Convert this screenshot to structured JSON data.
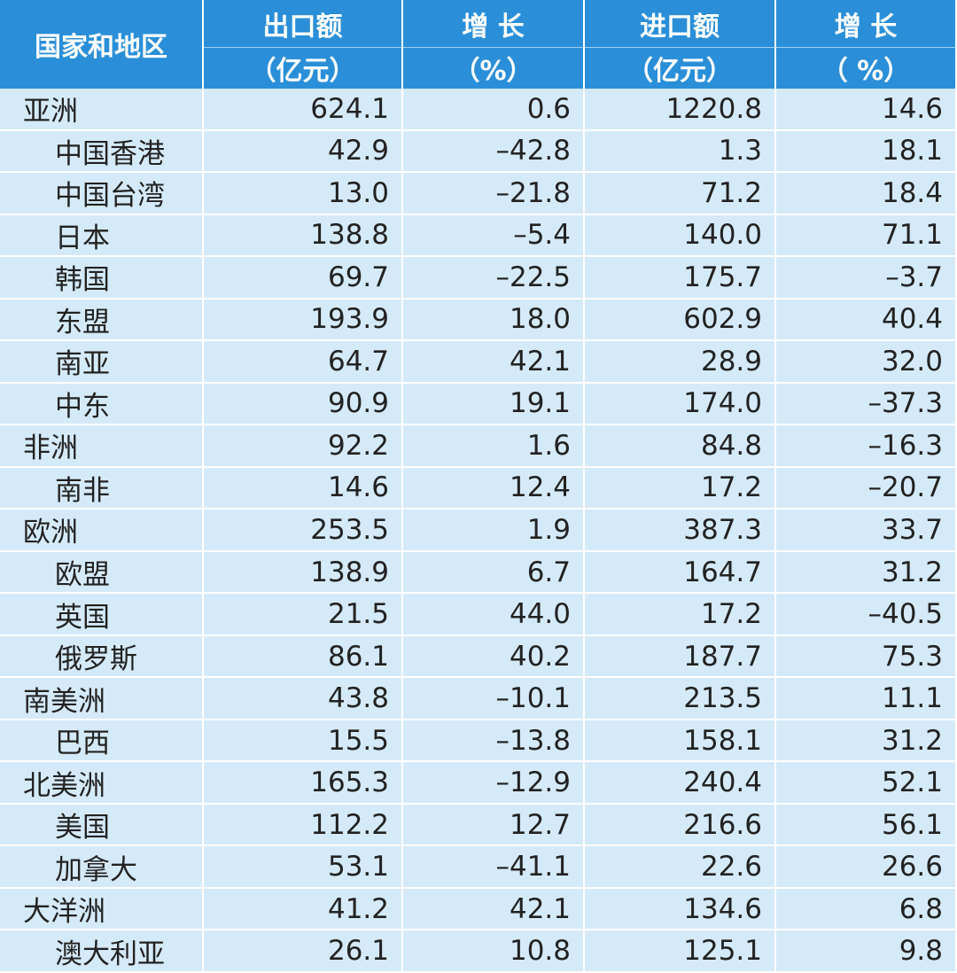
{
  "table": {
    "header": {
      "first": "国家和地区",
      "columns": [
        {
          "main": "出口额",
          "unit": "（亿元）"
        },
        {
          "main": "增 长",
          "unit": "（%）"
        },
        {
          "main": "进口额",
          "unit": "（亿元）"
        },
        {
          "main": "增 长",
          "unit": "（ %）"
        }
      ]
    },
    "regions": [
      {
        "row": [
          "亚洲",
          "624.1",
          "0.6",
          "1220.8",
          "14.6"
        ],
        "members": [
          [
            "中国香港",
            "42.9",
            "–42.8",
            "1.3",
            "18.1"
          ],
          [
            "中国台湾",
            "13.0",
            "–21.8",
            "71.2",
            "18.4"
          ],
          [
            "日本",
            "138.8",
            "–5.4",
            "140.0",
            "71.1"
          ],
          [
            "韩国",
            "69.7",
            "–22.5",
            "175.7",
            "–3.7"
          ],
          [
            "东盟",
            "193.9",
            "18.0",
            "602.9",
            "40.4"
          ],
          [
            "南亚",
            "64.7",
            "42.1",
            "28.9",
            "32.0"
          ],
          [
            "中东",
            "90.9",
            "19.1",
            "174.0",
            "–37.3"
          ]
        ]
      },
      {
        "row": [
          "非洲",
          "92.2",
          "1.6",
          "84.8",
          "–16.3"
        ],
        "members": [
          [
            "南非",
            "14.6",
            "12.4",
            "17.2",
            "–20.7"
          ]
        ]
      },
      {
        "row": [
          "欧洲",
          "253.5",
          "1.9",
          "387.3",
          "33.7"
        ],
        "members": [
          [
            "欧盟",
            "138.9",
            "6.7",
            "164.7",
            "31.2"
          ],
          [
            "英国",
            "21.5",
            "44.0",
            "17.2",
            "–40.5"
          ],
          [
            "俄罗斯",
            "86.1",
            "40.2",
            "187.7",
            "75.3"
          ]
        ]
      },
      {
        "row": [
          "南美洲",
          "43.8",
          "–10.1",
          "213.5",
          "11.1"
        ],
        "members": [
          [
            "巴西",
            "15.5",
            "–13.8",
            "158.1",
            "31.2"
          ]
        ]
      },
      {
        "row": [
          "北美洲",
          "165.3",
          "–12.9",
          "240.4",
          "52.1"
        ],
        "members": [
          [
            "美国",
            "112.2",
            "12.7",
            "216.6",
            "56.1"
          ],
          [
            "加拿大",
            "53.1",
            "–41.1",
            "22.6",
            "26.6"
          ]
        ]
      },
      {
        "row": [
          "大洋洲",
          "41.2",
          "42.1",
          "134.6",
          "6.8"
        ],
        "members": [
          [
            "澳大利亚",
            "26.1",
            "10.8",
            "125.1",
            "9.8"
          ]
        ]
      }
    ]
  }
}
